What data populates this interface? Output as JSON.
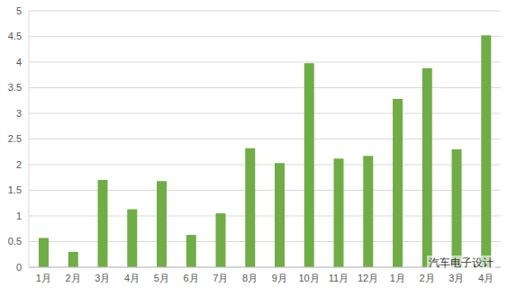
{
  "chart_data": {
    "type": "bar",
    "categories": [
      "1月",
      "2月",
      "3月",
      "4月",
      "5月",
      "6月",
      "7月",
      "8月",
      "9月",
      "10月",
      "11月",
      "12月",
      "1月",
      "2月",
      "3月",
      "4月"
    ],
    "values": [
      0.57,
      0.3,
      1.7,
      1.13,
      1.68,
      0.63,
      1.05,
      2.32,
      2.03,
      3.98,
      2.12,
      2.17,
      3.28,
      3.88,
      2.3,
      4.52
    ],
    "color": "#70ad47",
    "ylim": [
      0,
      5
    ],
    "yticks": [
      0,
      0.5,
      1,
      1.5,
      2,
      2.5,
      3,
      3.5,
      4,
      4.5,
      5
    ],
    "grid": true,
    "annotation": "汽车电子设计"
  }
}
